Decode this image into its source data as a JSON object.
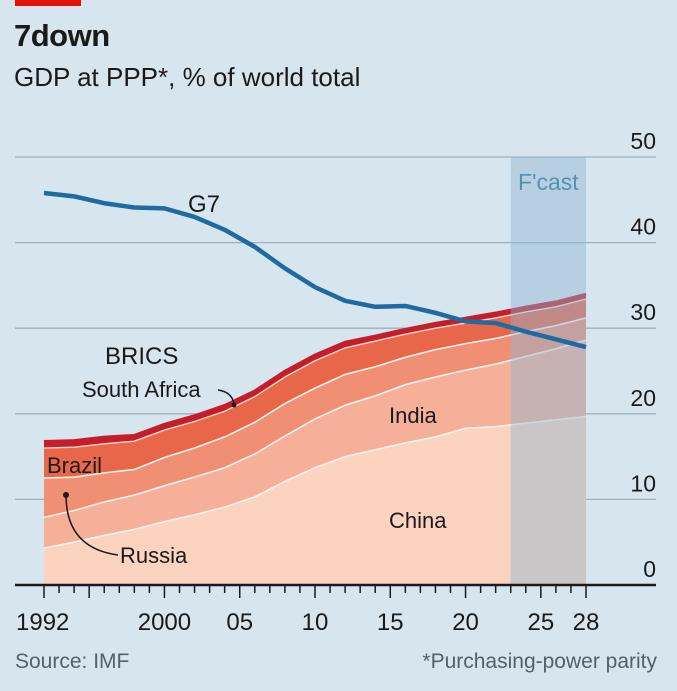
{
  "header": {
    "title": "7down",
    "subtitle": "GDP at PPP*, % of world total"
  },
  "footer": {
    "source": "Source: IMF",
    "note": "*Purchasing-power parity"
  },
  "colors": {
    "background": "#d7e6ee",
    "g7": "#1e6aa3",
    "china": "#fbd3bf",
    "india": "#f6b09a",
    "russia": "#f08f74",
    "brazil": "#e8674a",
    "south_africa": "#c41e2c",
    "forecast": "#a9c9de",
    "brand_red": "#e3120b"
  },
  "chart_data": {
    "type": "area",
    "title": "7down",
    "subtitle": "GDP at PPP*, % of world total",
    "ylim": [
      0,
      50
    ],
    "yticks": [
      0,
      10,
      20,
      30,
      40,
      50
    ],
    "xlim": [
      1992,
      2028
    ],
    "xtick_labels": [
      {
        "year": 1992,
        "label": "1992"
      },
      {
        "year": 2000,
        "label": "2000"
      },
      {
        "year": 2005,
        "label": "05"
      },
      {
        "year": 2010,
        "label": "10"
      },
      {
        "year": 2015,
        "label": "15"
      },
      {
        "year": 2020,
        "label": "20"
      },
      {
        "year": 2025,
        "label": "25"
      },
      {
        "year": 2028,
        "label": "28"
      }
    ],
    "grid": true,
    "forecast": {
      "label": "F'cast",
      "from": 2023,
      "to": 2028
    },
    "x": [
      1992,
      1994,
      1996,
      1998,
      2000,
      2002,
      2004,
      2006,
      2008,
      2010,
      2012,
      2014,
      2016,
      2018,
      2020,
      2022,
      2024,
      2026,
      2028
    ],
    "stacked_series": [
      {
        "name": "China",
        "values": [
          4.3,
          5.0,
          5.8,
          6.5,
          7.4,
          8.2,
          9.1,
          10.3,
          12.1,
          13.7,
          15.0,
          15.8,
          16.6,
          17.3,
          18.3,
          18.5,
          18.9,
          19.3,
          19.7
        ]
      },
      {
        "name": "India",
        "values": [
          3.6,
          3.7,
          3.9,
          4.0,
          4.2,
          4.4,
          4.6,
          5.0,
          5.3,
          5.7,
          6.0,
          6.3,
          6.8,
          7.0,
          6.8,
          7.3,
          7.8,
          8.3,
          8.9
        ]
      },
      {
        "name": "Russia",
        "values": [
          4.6,
          3.9,
          3.4,
          3.0,
          3.3,
          3.4,
          3.6,
          3.7,
          3.8,
          3.6,
          3.6,
          3.4,
          3.2,
          3.2,
          3.1,
          3.0,
          2.9,
          2.7,
          2.6
        ]
      },
      {
        "name": "Brazil",
        "values": [
          3.5,
          3.5,
          3.4,
          3.3,
          3.2,
          3.1,
          3.0,
          3.0,
          3.1,
          3.2,
          3.1,
          3.0,
          2.7,
          2.5,
          2.4,
          2.4,
          2.3,
          2.2,
          2.2
        ]
      },
      {
        "name": "South Africa",
        "values": [
          0.8,
          0.8,
          0.8,
          0.7,
          0.7,
          0.7,
          0.7,
          0.7,
          0.7,
          0.7,
          0.7,
          0.6,
          0.6,
          0.6,
          0.6,
          0.6,
          0.6,
          0.6,
          0.6
        ]
      }
    ],
    "line_series": [
      {
        "name": "G7",
        "values": [
          45.8,
          45.4,
          44.6,
          44.1,
          44.0,
          43.0,
          41.5,
          39.5,
          37.0,
          34.8,
          33.2,
          32.5,
          32.6,
          31.8,
          30.8,
          30.6,
          29.6,
          28.7,
          27.8
        ]
      }
    ],
    "annotations": {
      "g7": "G7",
      "brics": "BRICS",
      "south_africa": "South Africa",
      "india": "India",
      "brazil": "Brazil",
      "china": "China",
      "russia": "Russia"
    }
  }
}
